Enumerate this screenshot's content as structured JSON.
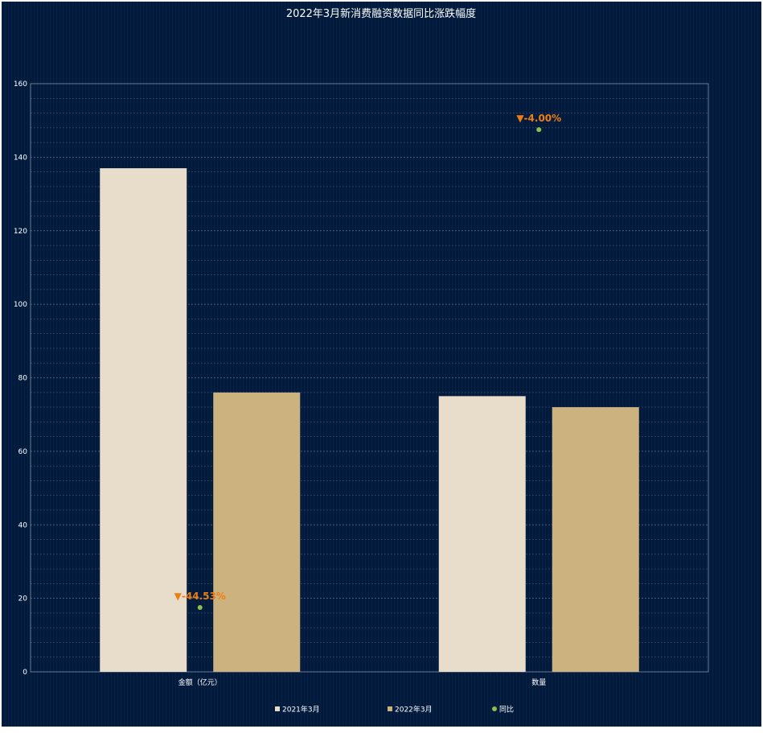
{
  "chart_data": {
    "type": "bar",
    "title": "2022年3月新消费融资数据同比涨跌幅度",
    "categories": [
      "金额（亿元）",
      "数量"
    ],
    "series": [
      {
        "name": "2021年3月",
        "values": [
          137,
          75
        ],
        "color": "#e8dccb"
      },
      {
        "name": "2022年3月",
        "values": [
          76,
          72
        ],
        "color": "#cbb27f"
      }
    ],
    "yoy": {
      "name": "同比",
      "values": [
        17.5,
        147.5
      ],
      "labels": [
        "▼-44.53%",
        "▼-4.00%"
      ],
      "color": "#8fbf4d",
      "label_color": "#f07d12"
    },
    "yticks": [
      0,
      20,
      40,
      60,
      80,
      100,
      120,
      140,
      160
    ],
    "ylim": [
      0,
      160
    ],
    "grid": true,
    "legend_position": "bottom-center"
  }
}
